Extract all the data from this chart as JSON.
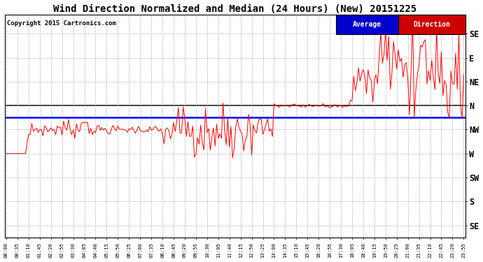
{
  "title": "Wind Direction Normalized and Median (24 Hours) (New) 20151225",
  "copyright": "Copyright 2015 Cartronics.com",
  "ytick_labels": [
    "SE",
    "E",
    "NE",
    "N",
    "NW",
    "W",
    "SW",
    "S",
    "SE"
  ],
  "ytick_values": [
    8,
    7,
    6,
    5,
    4,
    3,
    2,
    1,
    0
  ],
  "average_line_y": 4.5,
  "median_line_y": 5.0,
  "background_color": "#ffffff",
  "grid_color": "#aaaaaa",
  "title_fontsize": 10,
  "legend_label_avg": "Average",
  "legend_label_dir": "Direction",
  "legend_avg_color": "#0000cc",
  "legend_dir_color": "#cc0000",
  "red_line_color": "#ff0000",
  "blue_line_color": "#0000ff",
  "black_line_color": "#000000",
  "xtick_labels": [
    "00:00",
    "00:35",
    "01:10",
    "01:45",
    "02:20",
    "02:55",
    "03:30",
    "04:05",
    "04:40",
    "05:15",
    "05:50",
    "06:25",
    "07:00",
    "07:35",
    "08:10",
    "08:45",
    "09:20",
    "09:55",
    "10:30",
    "11:05",
    "11:40",
    "12:15",
    "12:50",
    "13:25",
    "14:00",
    "14:35",
    "15:10",
    "15:45",
    "16:20",
    "16:55",
    "17:30",
    "18:05",
    "18:40",
    "19:15",
    "19:50",
    "20:25",
    "21:00",
    "21:35",
    "22:10",
    "22:45",
    "23:20",
    "23:55"
  ]
}
